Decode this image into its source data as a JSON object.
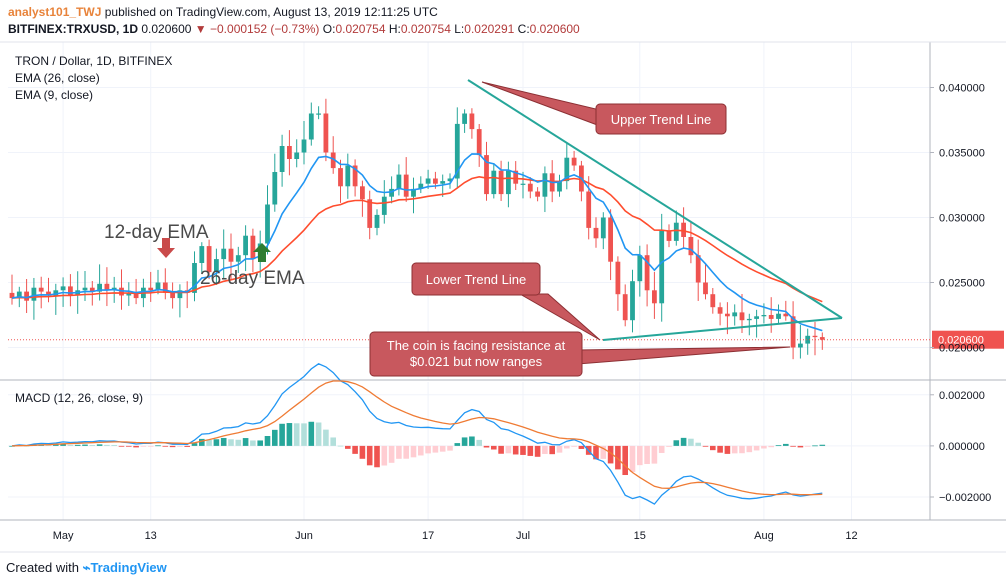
{
  "header": {
    "username": "analyst101_TWJ",
    "published_text": " published on TradingView.com, August 13, 2019 12:11:25 UTC",
    "symbol": "BITFINEX:TRXUSD, 1D",
    "price": "0.020600",
    "change": "−0.000152 (−0.73%)",
    "o_label": "O:",
    "o": "0.020754",
    "h_label": "H:",
    "h": "0.020754",
    "l_label": "L:",
    "l": "0.020291",
    "c_label": "C:",
    "c": "0.020600"
  },
  "main_pane": {
    "title": "TRON / Dollar, 1D, BITFINEX",
    "ema1_label": "EMA (26, close)",
    "ema2_label": "EMA (9, close)"
  },
  "macd_pane": {
    "label": "MACD (12, 26, close, 9)"
  },
  "annotations": {
    "ema12": "12-day EMA",
    "ema26": "26-day EMA",
    "upper": "Upper Trend Line",
    "lower": "Lower Trend Line",
    "callout_line1": "The coin is facing resistance at",
    "callout_line2": "$0.021 but now ranges"
  },
  "footer": {
    "created_with": "Created with",
    "brand": "TradingView"
  },
  "colors": {
    "up": "#26a69a",
    "down": "#ef5350",
    "ema26": "#ff4d2e",
    "ema9": "#2196f3",
    "trend": "#26a69a",
    "callout": "#c8585e",
    "last_price_tag": "#ef5350"
  },
  "chart_data": {
    "type": "candlestick",
    "x_ticks": [
      "May",
      "13",
      "Jun",
      "17",
      "Jul",
      "15",
      "Aug",
      "12"
    ],
    "price_ticks": [
      "0.040000",
      "0.035000",
      "0.030000",
      "0.025000",
      "0.020000"
    ],
    "price_range": [
      0.0175,
      0.0435
    ],
    "last_price": "0.020600",
    "macd_ticks": [
      "0.002000",
      "0.000000",
      "−0.002000"
    ],
    "macd_range": [
      -0.0029,
      0.0025
    ],
    "closes": [
      0.0238,
      0.0243,
      0.0236,
      0.0246,
      0.0243,
      0.024,
      0.0244,
      0.0247,
      0.024,
      0.0244,
      0.0246,
      0.0243,
      0.0249,
      0.0244,
      0.0246,
      0.024,
      0.0242,
      0.0238,
      0.0246,
      0.0244,
      0.025,
      0.0242,
      0.0238,
      0.0244,
      0.0242,
      0.0265,
      0.0278,
      0.0258,
      0.0268,
      0.0276,
      0.0266,
      0.0271,
      0.0286,
      0.0268,
      0.028,
      0.031,
      0.0335,
      0.0355,
      0.0345,
      0.035,
      0.036,
      0.038,
      0.038,
      0.035,
      0.0338,
      0.0324,
      0.034,
      0.0324,
      0.0314,
      0.0292,
      0.0302,
      0.0316,
      0.0322,
      0.0333,
      0.0316,
      0.0322,
      0.0326,
      0.033,
      0.0326,
      0.0328,
      0.033,
      0.0372,
      0.038,
      0.0368,
      0.0348,
      0.0318,
      0.0336,
      0.0318,
      0.0336,
      0.0326,
      0.0326,
      0.032,
      0.0316,
      0.0334,
      0.032,
      0.0328,
      0.0346,
      0.034,
      0.032,
      0.0292,
      0.0284,
      0.03,
      0.0266,
      0.0241,
      0.0221,
      0.0251,
      0.0271,
      0.0244,
      0.0234,
      0.029,
      0.0282,
      0.0296,
      0.0285,
      0.0271,
      0.025,
      0.0241,
      0.0231,
      0.0226,
      0.0224,
      0.0227,
      0.0221,
      0.0222,
      0.0224,
      0.0225,
      0.0222,
      0.0226,
      0.0224,
      0.02,
      0.0203,
      0.0209,
      0.0208,
      0.0206
    ]
  }
}
